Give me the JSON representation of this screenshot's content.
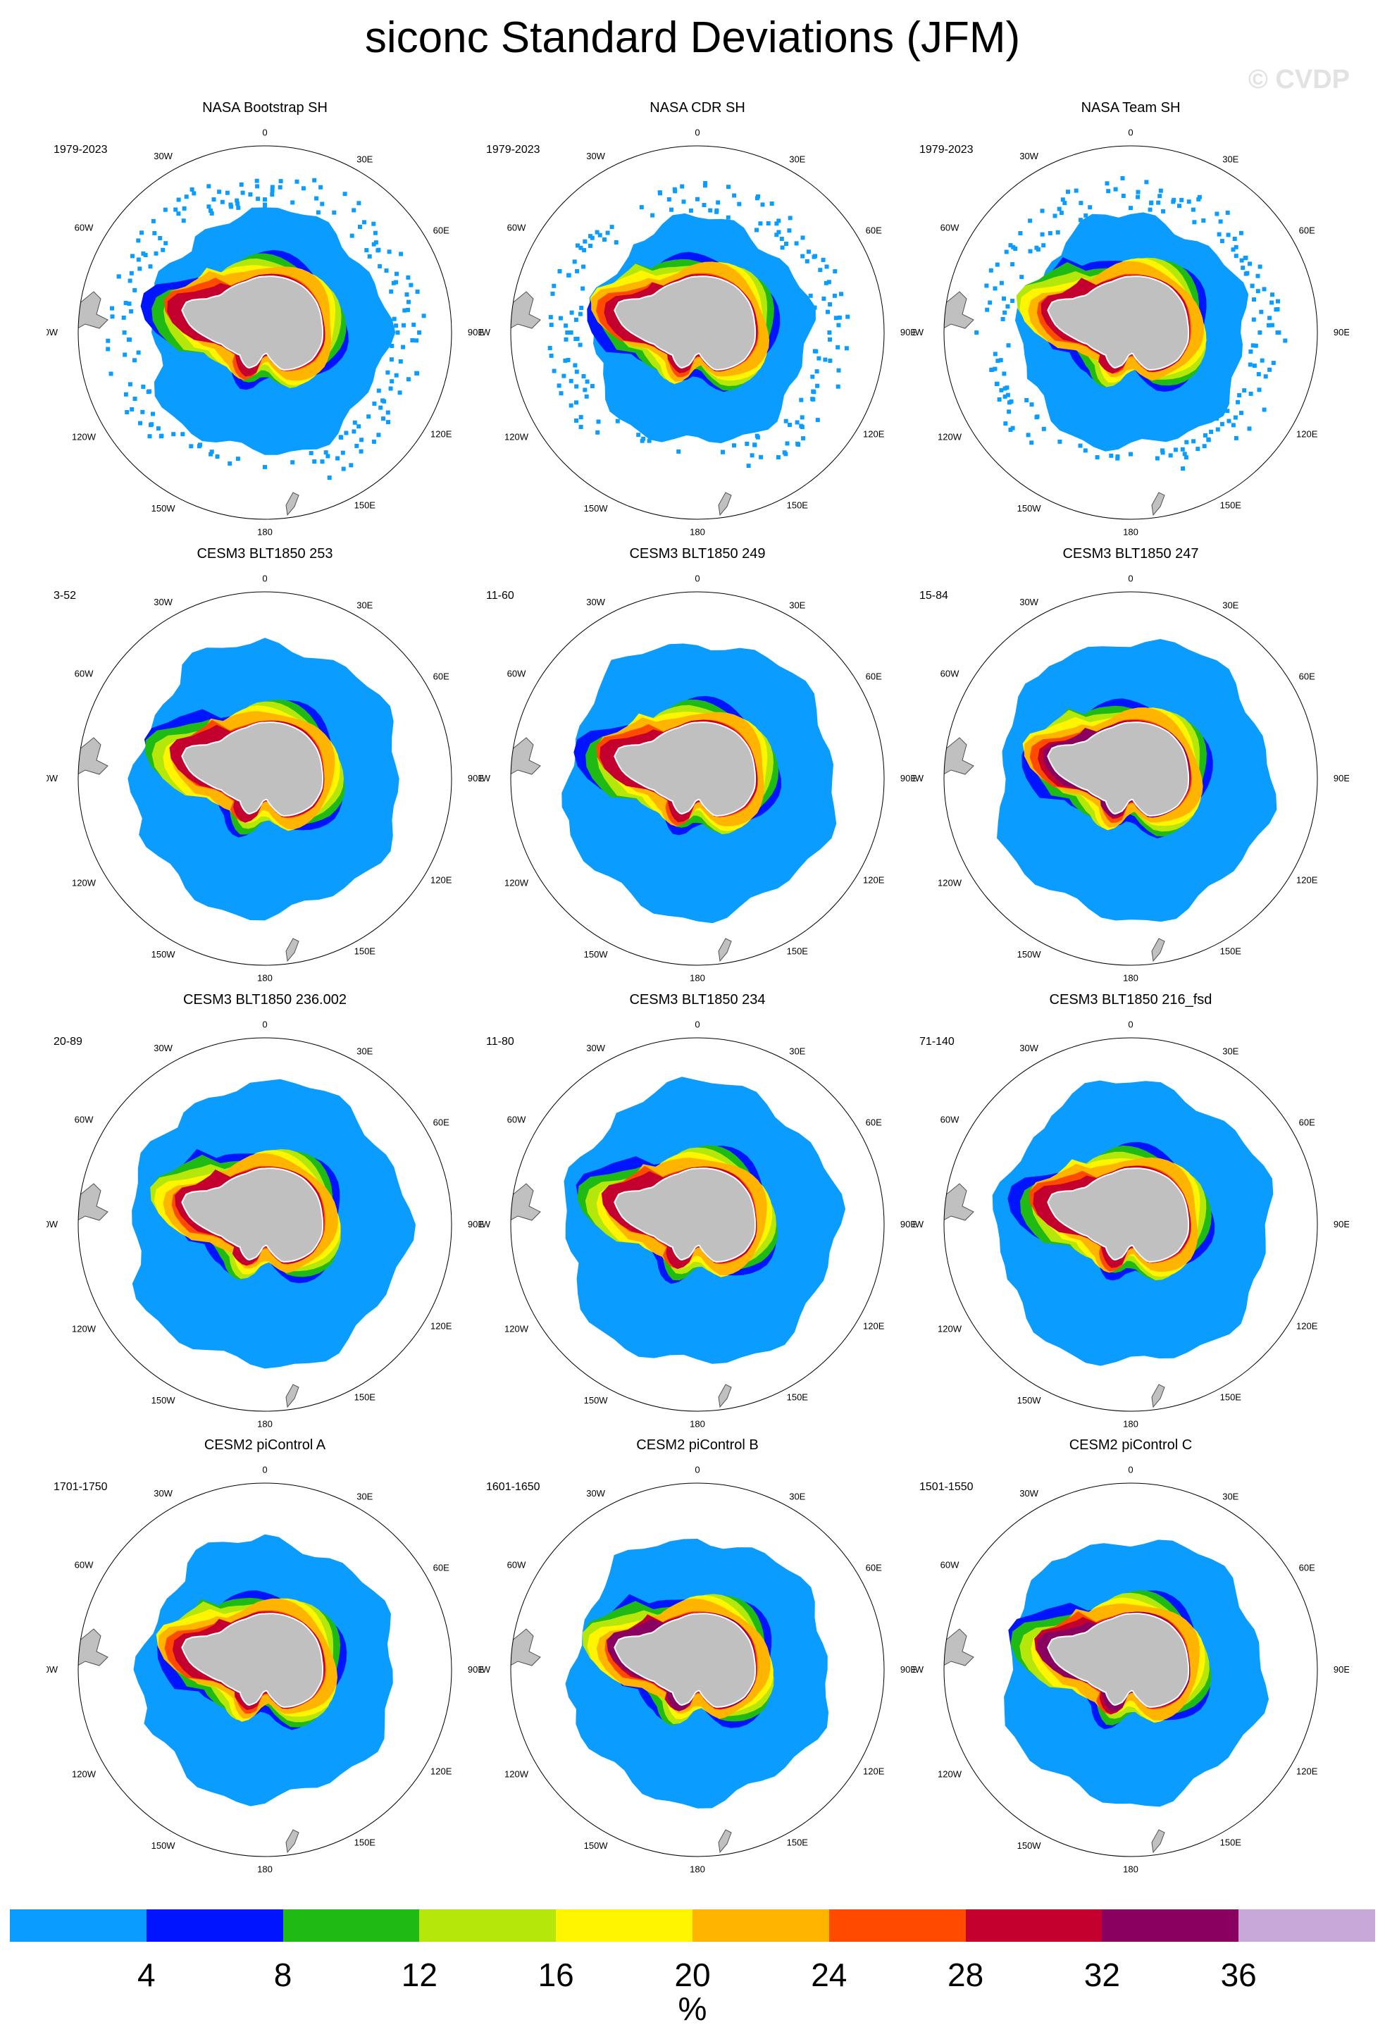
{
  "title": "siconc Standard Deviations (JFM)",
  "watermark": "© CVDP",
  "colors": {
    "levels": [
      "#0a9dff",
      "#0014ff",
      "#20ba14",
      "#b5e80a",
      "#fff500",
      "#ffb400",
      "#ff4a00",
      "#c4002f",
      "#8a0060",
      "#c8a8d8"
    ],
    "land": "#c0c0c0",
    "coast": "#505050"
  },
  "chart_data": {
    "type": "heatmap",
    "projection": "south-polar-stereographic",
    "lon_labels": [
      "0",
      "30E",
      "60E",
      "90E",
      "120E",
      "150E",
      "180",
      "150W",
      "120W",
      "90W",
      "60W",
      "30W"
    ],
    "colorbar": {
      "ticks": [
        "4",
        "8",
        "12",
        "16",
        "20",
        "24",
        "28",
        "32",
        "36"
      ],
      "units": "%"
    },
    "panels": [
      {
        "title": "NASA Bootstrap SH",
        "range": "1979-2023",
        "outer": 0.65,
        "blue": 0.16,
        "max_level": 8,
        "scattered": true
      },
      {
        "title": "NASA CDR SH",
        "range": "1979-2023",
        "outer": 0.6,
        "blue": 0.15,
        "max_level": 8,
        "scattered": true
      },
      {
        "title": "NASA Team SH",
        "range": "1979-2023",
        "outer": 0.62,
        "blue": 0.15,
        "max_level": 8,
        "scattered": true
      },
      {
        "title": "CESM3 BLT1850 253",
        "range": "3-52",
        "outer": 0.73,
        "blue": 0.12,
        "max_level": 8,
        "scattered": false
      },
      {
        "title": "CESM3 BLT1850 249",
        "range": "11-60",
        "outer": 0.74,
        "blue": 0.12,
        "max_level": 8,
        "scattered": false
      },
      {
        "title": "CESM3 BLT1850 247",
        "range": "15-84",
        "outer": 0.75,
        "blue": 0.12,
        "max_level": 9,
        "scattered": false
      },
      {
        "title": "CESM3 BLT1850 236.002",
        "range": "20-89",
        "outer": 0.76,
        "blue": 0.12,
        "max_level": 8,
        "scattered": false
      },
      {
        "title": "CESM3 BLT1850 234",
        "range": "11-80",
        "outer": 0.75,
        "blue": 0.12,
        "max_level": 8,
        "scattered": false
      },
      {
        "title": "CESM3 BLT1850 216_fsd",
        "range": "71-140",
        "outer": 0.75,
        "blue": 0.12,
        "max_level": 8,
        "scattered": false
      },
      {
        "title": "CESM2 piControl A",
        "range": "1701-1750",
        "outer": 0.7,
        "blue": 0.13,
        "max_level": 8,
        "scattered": false
      },
      {
        "title": "CESM2 piControl B",
        "range": "1601-1650",
        "outer": 0.71,
        "blue": 0.13,
        "max_level": 9,
        "scattered": false
      },
      {
        "title": "CESM2 piControl C",
        "range": "1501-1550",
        "outer": 0.71,
        "blue": 0.13,
        "max_level": 9,
        "scattered": false
      }
    ]
  }
}
